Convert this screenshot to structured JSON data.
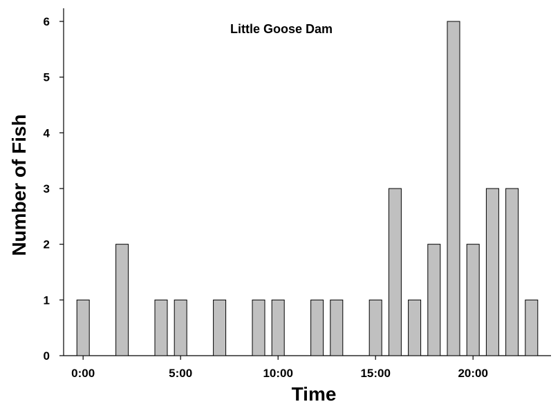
{
  "chart_data": {
    "type": "bar",
    "title": "Little Goose Dam",
    "xlabel": "Time",
    "ylabel": "Number of Fish",
    "x": [
      0,
      2,
      4,
      5,
      7,
      9,
      10,
      12,
      13,
      15,
      16,
      17,
      18,
      19,
      20,
      21,
      22,
      23
    ],
    "values": [
      1,
      2,
      1,
      1,
      1,
      1,
      1,
      1,
      1,
      1,
      3,
      1,
      2,
      6,
      2,
      3,
      3,
      1
    ],
    "xlim": [
      -1,
      24
    ],
    "ylim": [
      0,
      6
    ],
    "x_ticks": [
      0,
      5,
      10,
      15,
      20
    ],
    "x_tick_labels": [
      "0:00",
      "5:00",
      "10:00",
      "15:00",
      "20:00"
    ],
    "y_ticks": [
      0,
      1,
      2,
      3,
      4,
      5,
      6
    ],
    "y_tick_labels": [
      "0",
      "1",
      "2",
      "3",
      "4",
      "5",
      "6"
    ],
    "grid": false,
    "bar_color": "#c0c0c0",
    "edge_color": "#000000"
  }
}
